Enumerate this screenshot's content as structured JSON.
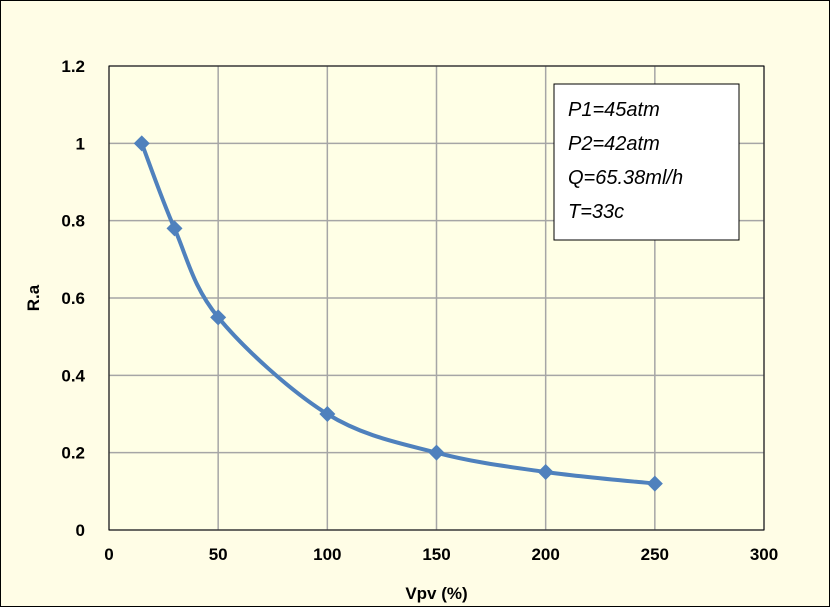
{
  "colors": {
    "background": "#fffde6",
    "plot_area": "#ffffe6",
    "grid": "#a6a6a6",
    "series": "#4f81bd"
  },
  "chart_data": {
    "type": "scatter",
    "xlabel": "Vpv (%)",
    "ylabel": "R.a",
    "xlim": [
      0,
      300
    ],
    "ylim": [
      0,
      1.2
    ],
    "xticks": [
      0,
      50,
      100,
      150,
      200,
      250,
      300
    ],
    "yticks": [
      0,
      0.2,
      0.4,
      0.6,
      0.8,
      1,
      1.2
    ],
    "grid": true,
    "smooth_line": true,
    "marker": "diamond",
    "series": [
      {
        "x": [
          15,
          30,
          50,
          100,
          150,
          200,
          250
        ],
        "y": [
          1,
          0.78,
          0.55,
          0.3,
          0.2,
          0.15,
          0.12
        ]
      }
    ],
    "annotation": {
      "position": "top-right",
      "lines": [
        "P1=45atm",
        "P2=42atm",
        "Q=65.38ml/h",
        "T=33c"
      ]
    }
  }
}
